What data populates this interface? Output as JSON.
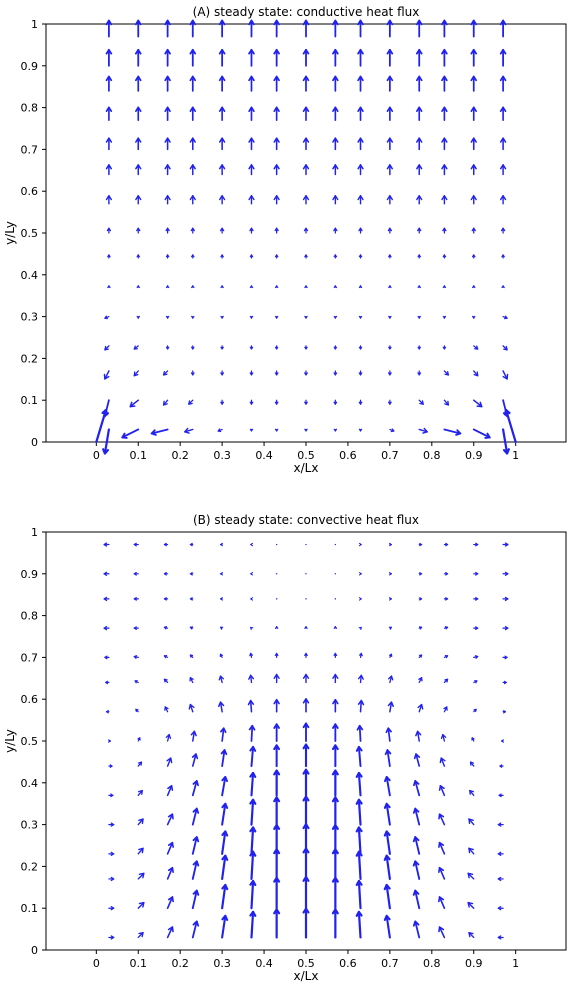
{
  "colors": {
    "arrow": "#2222ee",
    "axis": "#000000",
    "background": "#ffffff"
  },
  "chart_data": [
    {
      "type": "quiver",
      "title": "(A) steady state: conductive heat flux",
      "xlabel": "x/Lx",
      "ylabel": "y/Ly",
      "xlim": [
        -0.12,
        1.12
      ],
      "ylim": [
        0,
        1
      ],
      "xticks": [
        "0",
        "0.1",
        "0.2",
        "0.3",
        "0.4",
        "0.5",
        "0.6",
        "0.7",
        "0.8",
        "0.9",
        "1"
      ],
      "yticks": [
        "0",
        "0.1",
        "0.2",
        "0.3",
        "0.4",
        "0.5",
        "0.6",
        "0.7",
        "0.8",
        "0.9",
        "1"
      ],
      "grid": false,
      "x": [
        0.03,
        0.1,
        0.17,
        0.23,
        0.3,
        0.37,
        0.43,
        0.5,
        0.57,
        0.63,
        0.7,
        0.77,
        0.83,
        0.9,
        0.97
      ],
      "y": [
        0.97,
        0.9,
        0.84,
        0.77,
        0.7,
        0.64,
        0.57,
        0.5,
        0.44,
        0.37,
        0.3,
        0.23,
        0.17,
        0.1,
        0.03
      ],
      "u": [
        [
          0,
          0,
          0,
          0,
          0,
          0,
          0,
          0,
          0,
          0,
          0,
          0,
          0,
          0,
          0
        ],
        [
          0,
          0,
          0,
          0,
          0,
          0,
          0,
          0,
          0,
          0,
          0,
          0,
          0,
          0,
          0
        ],
        [
          0,
          0,
          0,
          0,
          0,
          0,
          0,
          0,
          0,
          0,
          0,
          0,
          0,
          0,
          0
        ],
        [
          0,
          0,
          0,
          0,
          0,
          0,
          0,
          0,
          0,
          0,
          0,
          0,
          0,
          0,
          0
        ],
        [
          0,
          0,
          0,
          0,
          0,
          0,
          0,
          0,
          0,
          0,
          0,
          0,
          0,
          0,
          0
        ],
        [
          0,
          0,
          0,
          0,
          0,
          0,
          0,
          0,
          0,
          0,
          0,
          0,
          0,
          0,
          0
        ],
        [
          0,
          0,
          0,
          0,
          0,
          0,
          0,
          0,
          0,
          0,
          0,
          0,
          0,
          0,
          0
        ],
        [
          0,
          0,
          0,
          0,
          0,
          0,
          0,
          0,
          0,
          0,
          0,
          0,
          0,
          0,
          0
        ],
        [
          0,
          0,
          0,
          0,
          0,
          0,
          0,
          0,
          0,
          0,
          0,
          0,
          0,
          0,
          0
        ],
        [
          0,
          0,
          0,
          0,
          0,
          0,
          0,
          0,
          0,
          0,
          0,
          0,
          0,
          0,
          0
        ],
        [
          -0.005,
          0,
          0,
          0,
          0,
          0,
          0,
          0,
          0,
          0,
          0,
          0,
          0,
          0,
          0.005
        ],
        [
          -0.005,
          -0.005,
          0,
          0,
          0,
          0,
          0,
          0,
          0,
          0,
          0,
          0,
          0,
          0.005,
          0.005
        ],
        [
          -0.005,
          -0.005,
          -0.005,
          0,
          0,
          0,
          0,
          0,
          0,
          0,
          0,
          0,
          0.005,
          0.005,
          0.005
        ],
        [
          -0.005,
          -0.01,
          -0.005,
          -0.005,
          0,
          0,
          0,
          0,
          0,
          0,
          0,
          0.005,
          0.005,
          0.01,
          0.005
        ],
        [
          -0.005,
          -0.02,
          -0.02,
          -0.01,
          -0.005,
          0,
          0,
          0,
          0,
          0,
          0.005,
          0.01,
          0.02,
          0.02,
          0.005
        ]
      ],
      "v": [
        [
          0.02,
          0.02,
          0.02,
          0.02,
          0.02,
          0.02,
          0.02,
          0.02,
          0.02,
          0.02,
          0.02,
          0.02,
          0.02,
          0.02,
          0.02
        ],
        [
          0.02,
          0.02,
          0.02,
          0.02,
          0.02,
          0.02,
          0.02,
          0.02,
          0.02,
          0.02,
          0.02,
          0.02,
          0.02,
          0.02,
          0.02
        ],
        [
          0.018,
          0.018,
          0.018,
          0.018,
          0.018,
          0.018,
          0.018,
          0.018,
          0.018,
          0.018,
          0.018,
          0.018,
          0.018,
          0.018,
          0.018
        ],
        [
          0.016,
          0.016,
          0.016,
          0.016,
          0.016,
          0.016,
          0.016,
          0.016,
          0.016,
          0.016,
          0.016,
          0.016,
          0.016,
          0.016,
          0.016
        ],
        [
          0.014,
          0.014,
          0.014,
          0.014,
          0.014,
          0.014,
          0.014,
          0.014,
          0.014,
          0.014,
          0.014,
          0.014,
          0.014,
          0.014,
          0.014
        ],
        [
          0.012,
          0.012,
          0.012,
          0.012,
          0.012,
          0.012,
          0.012,
          0.012,
          0.012,
          0.012,
          0.012,
          0.012,
          0.012,
          0.012,
          0.012
        ],
        [
          0.01,
          0.01,
          0.01,
          0.01,
          0.01,
          0.01,
          0.01,
          0.01,
          0.01,
          0.01,
          0.01,
          0.01,
          0.01,
          0.01,
          0.01
        ],
        [
          0.006,
          0.006,
          0.006,
          0.006,
          0.006,
          0.006,
          0.006,
          0.006,
          0.006,
          0.006,
          0.006,
          0.006,
          0.006,
          0.006,
          0.006
        ],
        [
          0.004,
          0.004,
          0.004,
          0.004,
          0.004,
          0.004,
          0.004,
          0.004,
          0.004,
          0.004,
          0.004,
          0.004,
          0.004,
          0.004,
          0.004
        ],
        [
          0.002,
          0.002,
          0.002,
          0.002,
          0.002,
          0.002,
          0.002,
          0.002,
          0.002,
          0.002,
          0.002,
          0.002,
          0.002,
          0.002,
          0.002
        ],
        [
          -0.002,
          -0.002,
          -0.002,
          -0.002,
          -0.002,
          -0.002,
          -0.002,
          -0.002,
          -0.002,
          -0.002,
          -0.002,
          -0.002,
          -0.002,
          -0.002,
          -0.002
        ],
        [
          -0.005,
          -0.004,
          -0.004,
          -0.004,
          -0.004,
          -0.004,
          -0.004,
          -0.004,
          -0.004,
          -0.004,
          -0.004,
          -0.004,
          -0.004,
          -0.004,
          -0.005
        ],
        [
          -0.01,
          -0.006,
          -0.005,
          -0.005,
          -0.005,
          -0.005,
          -0.005,
          -0.005,
          -0.005,
          -0.005,
          -0.005,
          -0.005,
          -0.005,
          -0.006,
          -0.01
        ],
        [
          -0.02,
          -0.008,
          -0.006,
          -0.005,
          -0.005,
          -0.005,
          -0.005,
          -0.005,
          -0.005,
          -0.005,
          -0.005,
          -0.005,
          -0.006,
          -0.008,
          -0.02
        ],
        [
          -0.03,
          -0.01,
          -0.005,
          -0.003,
          -0.002,
          -0.002,
          -0.002,
          -0.002,
          -0.002,
          -0.002,
          -0.002,
          -0.003,
          -0.005,
          -0.01,
          -0.03
        ]
      ],
      "extra_vectors": [
        {
          "x": 0.0,
          "y": 0.0,
          "u": 0.012,
          "v": 0.04
        },
        {
          "x": 1.0,
          "y": 0.0,
          "u": -0.012,
          "v": 0.04
        }
      ]
    },
    {
      "type": "quiver",
      "title": "(B) steady state: convective heat flux",
      "xlabel": "x/Lx",
      "ylabel": "y/Ly",
      "xlim": [
        -0.12,
        1.12
      ],
      "ylim": [
        0,
        1
      ],
      "xticks": [
        "0",
        "0.1",
        "0.2",
        "0.3",
        "0.4",
        "0.5",
        "0.6",
        "0.7",
        "0.8",
        "0.9",
        "1"
      ],
      "yticks": [
        "0",
        "0.1",
        "0.2",
        "0.3",
        "0.4",
        "0.5",
        "0.6",
        "0.7",
        "0.8",
        "0.9",
        "1"
      ],
      "grid": false,
      "x": [
        0.03,
        0.1,
        0.17,
        0.23,
        0.3,
        0.37,
        0.43,
        0.5,
        0.57,
        0.63,
        0.7,
        0.77,
        0.83,
        0.9,
        0.97
      ],
      "y": [
        0.97,
        0.9,
        0.84,
        0.77,
        0.7,
        0.64,
        0.57,
        0.5,
        0.44,
        0.37,
        0.3,
        0.23,
        0.17,
        0.1,
        0.03
      ],
      "u": [
        [
          -0.006,
          -0.005,
          -0.004,
          -0.003,
          -0.002,
          -0.001,
          0,
          0,
          0,
          0.001,
          0.002,
          0.003,
          0.004,
          0.005,
          0.006
        ],
        [
          -0.006,
          -0.005,
          -0.004,
          -0.003,
          -0.002,
          -0.001,
          0,
          0,
          0,
          0.001,
          0.002,
          0.003,
          0.004,
          0.005,
          0.006
        ],
        [
          -0.006,
          -0.005,
          -0.004,
          -0.003,
          -0.002,
          -0.001,
          0,
          0,
          0,
          0.001,
          0.002,
          0.003,
          0.004,
          0.005,
          0.006
        ],
        [
          -0.006,
          -0.005,
          -0.004,
          -0.003,
          -0.002,
          -0.001,
          0,
          0,
          0,
          0.001,
          0.002,
          0.003,
          0.004,
          0.005,
          0.006
        ],
        [
          -0.005,
          -0.005,
          -0.004,
          -0.003,
          -0.002,
          -0.001,
          0,
          0,
          0,
          0.001,
          0.002,
          0.003,
          0.004,
          0.005,
          0.005
        ],
        [
          -0.004,
          -0.004,
          -0.004,
          -0.003,
          -0.002,
          -0.001,
          0,
          0,
          0,
          0.001,
          0.002,
          0.003,
          0.004,
          0.004,
          0.004
        ],
        [
          -0.003,
          -0.003,
          -0.003,
          -0.003,
          -0.002,
          -0.001,
          0,
          0,
          0,
          0.001,
          0.002,
          0.003,
          0.003,
          0.003,
          0.003
        ],
        [
          0.002,
          0.002,
          0.002,
          0.002,
          0.002,
          0.001,
          0,
          0,
          0,
          -0.001,
          -0.002,
          -0.002,
          -0.002,
          -0.002,
          -0.002
        ],
        [
          0.004,
          0.004,
          0.004,
          0.004,
          0.003,
          0.002,
          0,
          0,
          0,
          -0.002,
          -0.003,
          -0.004,
          -0.004,
          -0.004,
          -0.004
        ],
        [
          0.005,
          0.005,
          0.005,
          0.005,
          0.004,
          0.002,
          0,
          0,
          0,
          -0.002,
          -0.004,
          -0.005,
          -0.005,
          -0.005,
          -0.005
        ],
        [
          0.006,
          0.006,
          0.006,
          0.005,
          0.004,
          0.002,
          0,
          0,
          0,
          -0.002,
          -0.004,
          -0.005,
          -0.006,
          -0.006,
          -0.006
        ],
        [
          0.006,
          0.006,
          0.006,
          0.005,
          0.004,
          0.002,
          0,
          0,
          0,
          -0.002,
          -0.004,
          -0.005,
          -0.006,
          -0.006,
          -0.006
        ],
        [
          0.006,
          0.007,
          0.006,
          0.005,
          0.004,
          0.002,
          0,
          0,
          0,
          -0.002,
          -0.004,
          -0.005,
          -0.006,
          -0.007,
          -0.006
        ],
        [
          0.006,
          0.007,
          0.006,
          0.005,
          0.004,
          0.002,
          0,
          0,
          0,
          -0.002,
          -0.004,
          -0.005,
          -0.006,
          -0.007,
          -0.006
        ],
        [
          0.006,
          0.006,
          0.006,
          0.005,
          0.004,
          0.002,
          0,
          0,
          0,
          -0.002,
          -0.004,
          -0.005,
          -0.006,
          -0.006,
          -0.006
        ]
      ],
      "v": [
        [
          0,
          0,
          0,
          0,
          0,
          0,
          0,
          0,
          0,
          0,
          0,
          0,
          0,
          0,
          0
        ],
        [
          0,
          0,
          0,
          0,
          0,
          0,
          0,
          0,
          0,
          0,
          0,
          0,
          0,
          0,
          0
        ],
        [
          0,
          0,
          0,
          0,
          0,
          0,
          0,
          0,
          0,
          0,
          0,
          0,
          0,
          0,
          0
        ],
        [
          0,
          0,
          0.001,
          0.001,
          0.001,
          0.001,
          0.002,
          0.002,
          0.002,
          0.001,
          0.001,
          0.001,
          0.001,
          0,
          0
        ],
        [
          0,
          0.001,
          0.002,
          0.003,
          0.004,
          0.005,
          0.005,
          0.005,
          0.005,
          0.005,
          0.004,
          0.003,
          0.002,
          0.001,
          0
        ],
        [
          0,
          0.002,
          0.004,
          0.006,
          0.008,
          0.009,
          0.01,
          0.01,
          0.01,
          0.009,
          0.008,
          0.006,
          0.004,
          0.002,
          0
        ],
        [
          0,
          0.003,
          0.006,
          0.009,
          0.012,
          0.014,
          0.015,
          0.016,
          0.015,
          0.014,
          0.012,
          0.009,
          0.006,
          0.003,
          0
        ],
        [
          0,
          0.004,
          0.008,
          0.012,
          0.016,
          0.019,
          0.021,
          0.022,
          0.021,
          0.019,
          0.016,
          0.012,
          0.008,
          0.004,
          0
        ],
        [
          0,
          0.005,
          0.01,
          0.015,
          0.02,
          0.024,
          0.026,
          0.027,
          0.026,
          0.024,
          0.02,
          0.015,
          0.01,
          0.005,
          0
        ],
        [
          0,
          0.006,
          0.012,
          0.018,
          0.023,
          0.028,
          0.031,
          0.032,
          0.031,
          0.028,
          0.023,
          0.018,
          0.012,
          0.006,
          0
        ],
        [
          0,
          0.007,
          0.013,
          0.02,
          0.026,
          0.031,
          0.034,
          0.035,
          0.034,
          0.031,
          0.026,
          0.02,
          0.013,
          0.007,
          0
        ],
        [
          0,
          0.007,
          0.014,
          0.021,
          0.028,
          0.033,
          0.036,
          0.037,
          0.036,
          0.033,
          0.028,
          0.021,
          0.014,
          0.007,
          0
        ],
        [
          0,
          0.007,
          0.014,
          0.022,
          0.029,
          0.034,
          0.037,
          0.038,
          0.037,
          0.034,
          0.029,
          0.022,
          0.014,
          0.007,
          0
        ],
        [
          0,
          0.007,
          0.014,
          0.022,
          0.029,
          0.034,
          0.038,
          0.039,
          0.038,
          0.034,
          0.029,
          0.022,
          0.014,
          0.007,
          0
        ],
        [
          0,
          0.006,
          0.013,
          0.02,
          0.027,
          0.032,
          0.035,
          0.036,
          0.035,
          0.032,
          0.027,
          0.02,
          0.013,
          0.006,
          0
        ]
      ]
    }
  ]
}
